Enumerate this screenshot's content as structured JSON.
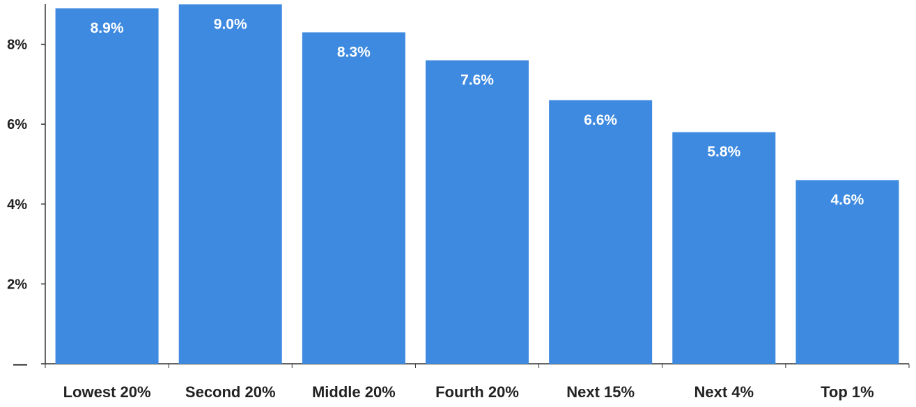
{
  "chart_data": {
    "type": "bar",
    "categories": [
      "Lowest 20%",
      "Second 20%",
      "Middle 20%",
      "Fourth 20%",
      "Next 15%",
      "Next 4%",
      "Top 1%"
    ],
    "values": [
      8.9,
      9.0,
      8.3,
      7.6,
      6.6,
      5.8,
      4.6
    ],
    "value_labels": [
      "8.9%",
      "9.0%",
      "8.3%",
      "7.6%",
      "6.6%",
      "5.8%",
      "4.6%"
    ],
    "y_ticks": [
      0,
      2,
      4,
      6,
      8
    ],
    "y_tick_labels": [
      "—",
      "2%",
      "4%",
      "6%",
      "8%"
    ],
    "ylim": [
      0,
      9.2
    ],
    "title": "",
    "xlabel": "",
    "ylabel": "",
    "grid": false,
    "bar_color": "#3d8ae0",
    "label_color": "#ffffff",
    "axis_color": "#333333"
  }
}
